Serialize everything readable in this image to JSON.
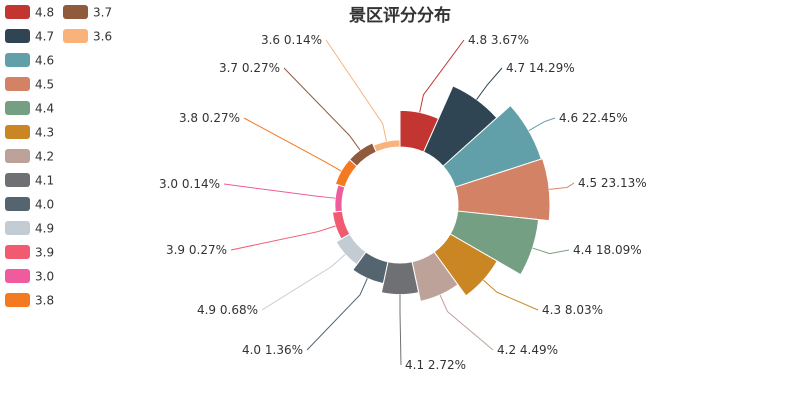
{
  "chart_data": {
    "type": "pie",
    "variant": "rose",
    "title": "景区评分分布",
    "legend": {
      "placement": "top-left",
      "items": [
        {
          "name": "4.8",
          "color": "#c23531"
        },
        {
          "name": "4.7",
          "color": "#2f4554"
        },
        {
          "name": "4.6",
          "color": "#61a0a8"
        },
        {
          "name": "4.5",
          "color": "#d48265"
        },
        {
          "name": "4.4",
          "color": "#749f83"
        },
        {
          "name": "4.3",
          "color": "#ca8622"
        },
        {
          "name": "4.2",
          "color": "#bda29a"
        },
        {
          "name": "4.1",
          "color": "#6e7074"
        },
        {
          "name": "4.0",
          "color": "#546570"
        },
        {
          "name": "4.9",
          "color": "#c4ccd3"
        },
        {
          "name": "3.9",
          "color": "#f05b72"
        },
        {
          "name": "3.0",
          "color": "#ef5b9c"
        },
        {
          "name": "3.8",
          "color": "#f47920"
        },
        {
          "name": "3.7",
          "color": "#905a3d"
        },
        {
          "name": "3.6",
          "color": "#fab27b"
        }
      ]
    },
    "slices": [
      {
        "name": "4.8",
        "percent": 3.67,
        "label": "4.8 3.67%",
        "color": "#c23531"
      },
      {
        "name": "4.7",
        "percent": 14.29,
        "label": "4.7 14.29%",
        "color": "#2f4554"
      },
      {
        "name": "4.6",
        "percent": 22.45,
        "label": "4.6 22.45%",
        "color": "#61a0a8"
      },
      {
        "name": "4.5",
        "percent": 23.13,
        "label": "4.5 23.13%",
        "color": "#d48265"
      },
      {
        "name": "4.4",
        "percent": 18.09,
        "label": "4.4 18.09%",
        "color": "#749f83"
      },
      {
        "name": "4.3",
        "percent": 8.03,
        "label": "4.3 8.03%",
        "color": "#ca8622"
      },
      {
        "name": "4.2",
        "percent": 4.49,
        "label": "4.2 4.49%",
        "color": "#bda29a"
      },
      {
        "name": "4.1",
        "percent": 2.72,
        "label": "4.1 2.72%",
        "color": "#6e7074"
      },
      {
        "name": "4.0",
        "percent": 1.36,
        "label": "4.0 1.36%",
        "color": "#546570"
      },
      {
        "name": "4.9",
        "percent": 0.68,
        "label": "4.9 0.68%",
        "color": "#c4ccd3"
      },
      {
        "name": "3.9",
        "percent": 0.27,
        "label": "3.9 0.27%",
        "color": "#f05b72"
      },
      {
        "name": "3.0",
        "percent": 0.14,
        "label": "3.0 0.14%",
        "color": "#ef5b9c"
      },
      {
        "name": "3.8",
        "percent": 0.27,
        "label": "3.8 0.27%",
        "color": "#f47920"
      },
      {
        "name": "3.7",
        "percent": 0.27,
        "label": "3.7 0.27%",
        "color": "#905a3d"
      },
      {
        "name": "3.6",
        "percent": 0.14,
        "label": "3.6 0.14%",
        "color": "#fab27b"
      }
    ]
  }
}
